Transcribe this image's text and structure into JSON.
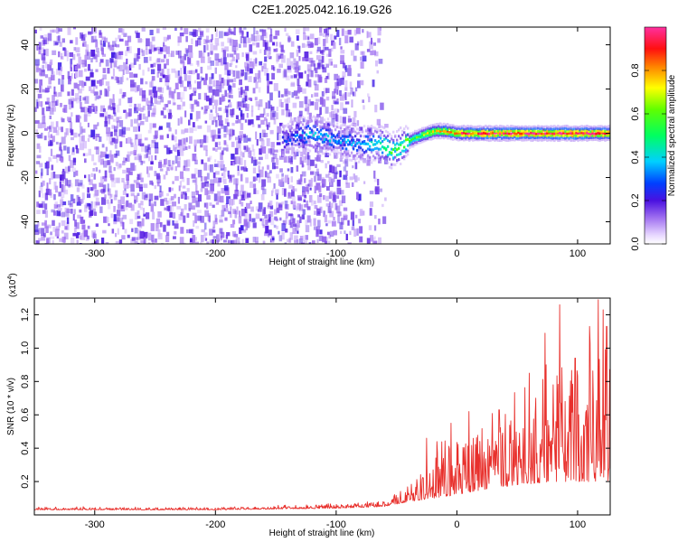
{
  "figure": {
    "title": "C2E1.2025.042.16.19.G26"
  },
  "chart_data": [
    {
      "type": "heatmap",
      "title": "C2E1.2025.042.16.19.G26",
      "xlabel": "Height of straight line (km)",
      "ylabel": "Frequency (Hz)",
      "xlim": [
        -350,
        127
      ],
      "ylim": [
        -50,
        48
      ],
      "x_ticks": [
        -300,
        -200,
        -100,
        0,
        100
      ],
      "y_ticks": [
        -40,
        -20,
        0,
        20,
        40
      ],
      "colorbar": {
        "label": "Normalized spectral amplitude",
        "range": [
          0,
          1
        ],
        "ticks": [
          0.0,
          0.2,
          0.4,
          0.6,
          0.8
        ],
        "colormap": "rainbow (white-violet-blue-cyan-green-yellow-orange-red-pink)"
      },
      "noise_region_x": [
        -350,
        -62
      ],
      "signal_track": [
        {
          "x": -145,
          "y": -3
        },
        {
          "x": -120,
          "y": 0
        },
        {
          "x": -100,
          "y": -3
        },
        {
          "x": -80,
          "y": -5
        },
        {
          "x": -62,
          "y": -5
        },
        {
          "x": -55,
          "y": -8
        },
        {
          "x": -45,
          "y": -5
        },
        {
          "x": -35,
          "y": -2
        },
        {
          "x": -20,
          "y": 1
        },
        {
          "x": -10,
          "y": 1
        },
        {
          "x": 0,
          "y": 0
        },
        {
          "x": 20,
          "y": 0
        },
        {
          "x": 60,
          "y": 0
        },
        {
          "x": 100,
          "y": 0
        },
        {
          "x": 127,
          "y": 0
        }
      ],
      "amplitude_profile": [
        {
          "x": -145,
          "a": 0.2
        },
        {
          "x": -120,
          "a": 0.35
        },
        {
          "x": -80,
          "a": 0.3
        },
        {
          "x": -60,
          "a": 0.5
        },
        {
          "x": -40,
          "a": 0.55
        },
        {
          "x": -20,
          "a": 0.7
        },
        {
          "x": 0,
          "a": 0.85
        },
        {
          "x": 20,
          "a": 0.95
        },
        {
          "x": 127,
          "a": 0.95
        }
      ]
    },
    {
      "type": "line",
      "xlabel": "Height of straight line (km)",
      "ylabel": "SNR (10 * v/v)",
      "y_multiplier_label": "(x10",
      "y_multiplier_exponent": "4",
      "y_multiplier_close": ")",
      "xlim": [
        -350,
        127
      ],
      "ylim": [
        0,
        1.3
      ],
      "x_ticks": [
        -300,
        -200,
        -100,
        0,
        100
      ],
      "y_ticks": [
        0.2,
        0.4,
        0.6,
        0.8,
        1.0,
        1.2
      ],
      "series_color": "#e8302c",
      "envelope": [
        {
          "x": -350,
          "base": 0.03,
          "amp": 0.02
        },
        {
          "x": -200,
          "base": 0.03,
          "amp": 0.02
        },
        {
          "x": -100,
          "base": 0.04,
          "amp": 0.03
        },
        {
          "x": -60,
          "base": 0.05,
          "amp": 0.04
        },
        {
          "x": -40,
          "base": 0.08,
          "amp": 0.12
        },
        {
          "x": -20,
          "base": 0.1,
          "amp": 0.35
        },
        {
          "x": 0,
          "base": 0.12,
          "amp": 0.45
        },
        {
          "x": 20,
          "base": 0.15,
          "amp": 0.5
        },
        {
          "x": 50,
          "base": 0.18,
          "amp": 0.6
        },
        {
          "x": 80,
          "base": 0.2,
          "amp": 0.85
        },
        {
          "x": 100,
          "base": 0.2,
          "amp": 0.9
        },
        {
          "x": 127,
          "base": 0.2,
          "amp": 1.0
        }
      ],
      "peaks": [
        {
          "x": -25,
          "y": 0.46
        },
        {
          "x": -5,
          "y": 0.55
        },
        {
          "x": 10,
          "y": 0.62
        },
        {
          "x": 35,
          "y": 0.63
        },
        {
          "x": 60,
          "y": 0.85
        },
        {
          "x": 73,
          "y": 1.09
        },
        {
          "x": 85,
          "y": 1.26
        },
        {
          "x": 98,
          "y": 0.94
        },
        {
          "x": 110,
          "y": 1.13
        },
        {
          "x": 117,
          "y": 1.29
        },
        {
          "x": 121,
          "y": 1.23
        },
        {
          "x": 124,
          "y": 1.13
        }
      ]
    }
  ]
}
